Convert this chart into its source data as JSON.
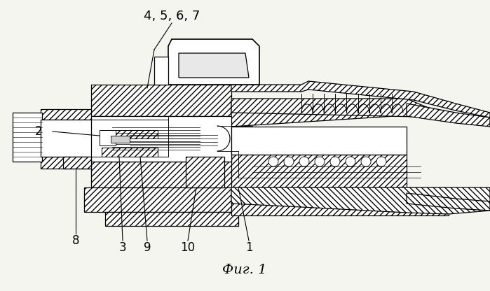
{
  "background_color": "#f5f5f0",
  "label_color": "#000000",
  "fig_label": "Фиг. 1",
  "labels": {
    "4567": "4, 5, 6, 7",
    "2": "2",
    "8": "8",
    "3": "3",
    "9": "9",
    "10": "10",
    "1": "1"
  },
  "hatch_dense": "////",
  "hatch_light": "///",
  "line_width": 0.9,
  "label_fontsize": 12,
  "fig_fontsize": 14
}
